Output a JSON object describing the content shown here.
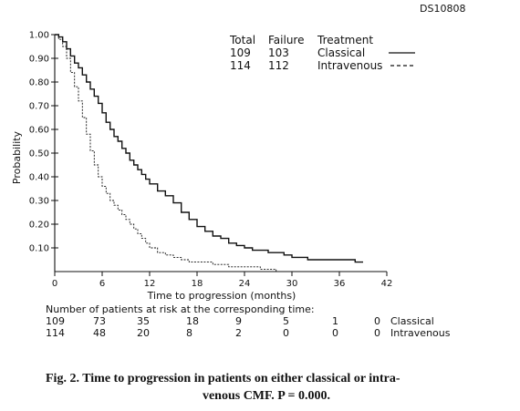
{
  "figure_id": "DS10808",
  "legend_table": {
    "headers": [
      "Total",
      "Failure",
      "Treatment"
    ],
    "rows": [
      {
        "total": "109",
        "failure": "103",
        "treatment": "Classical",
        "line": "solid"
      },
      {
        "total": "114",
        "failure": "112",
        "treatment": "Intravenous",
        "line": "dashed"
      }
    ]
  },
  "risk_table": {
    "title": "Number of patients at risk at the corresponding time:",
    "rows": [
      {
        "values": [
          "109",
          "73",
          "35",
          "18",
          "9",
          "5",
          "1",
          "0"
        ],
        "label": "Classical"
      },
      {
        "values": [
          "114",
          "48",
          "20",
          "8",
          "2",
          "0",
          "0",
          "0"
        ],
        "label": "Intravenous"
      }
    ]
  },
  "caption": {
    "line1": "Fig. 2. Time to progression in patients on either classical or intra-",
    "line2": "venous CMF. P = 0.000."
  },
  "chart_data": {
    "type": "line",
    "title": "",
    "xlabel": "Time to progression (months)",
    "ylabel": "Probability",
    "xlim": [
      0,
      42
    ],
    "ylim": [
      0,
      1.0
    ],
    "x_ticks": [
      0,
      6,
      12,
      18,
      24,
      30,
      36,
      42
    ],
    "x_tick_labels": [
      "0",
      "6",
      "12",
      "18",
      "24",
      "30",
      "36",
      "42"
    ],
    "y_ticks": [
      0.1,
      0.2,
      0.3,
      0.4,
      0.5,
      0.6,
      0.7,
      0.8,
      0.9,
      1.0
    ],
    "y_tick_labels": [
      "0.10",
      "0.20",
      "0.30",
      "0.40",
      "0.50",
      "0.60",
      "0.70",
      "0.80",
      "0.90",
      "1.00"
    ],
    "grid": false,
    "legend": "top-right",
    "series": [
      {
        "name": "Classical",
        "style": "solid",
        "x": [
          0,
          0.5,
          1,
          1.5,
          2,
          2.5,
          3,
          3.5,
          4,
          4.5,
          5,
          5.5,
          6,
          6.5,
          7,
          7.5,
          8,
          8.5,
          9,
          9.5,
          10,
          10.5,
          11,
          11.5,
          12,
          13,
          14,
          15,
          16,
          17,
          18,
          19,
          20,
          21,
          22,
          23,
          24,
          25,
          26,
          27,
          28,
          29,
          30,
          32,
          34,
          36,
          38,
          39
        ],
        "y": [
          1.0,
          0.99,
          0.97,
          0.94,
          0.91,
          0.88,
          0.86,
          0.83,
          0.8,
          0.77,
          0.74,
          0.71,
          0.67,
          0.63,
          0.6,
          0.57,
          0.55,
          0.52,
          0.5,
          0.47,
          0.45,
          0.43,
          0.41,
          0.39,
          0.37,
          0.34,
          0.32,
          0.29,
          0.25,
          0.22,
          0.19,
          0.17,
          0.15,
          0.14,
          0.12,
          0.11,
          0.1,
          0.09,
          0.09,
          0.08,
          0.08,
          0.07,
          0.06,
          0.05,
          0.05,
          0.05,
          0.04,
          0.04
        ]
      },
      {
        "name": "Intravenous",
        "style": "dashed",
        "x": [
          0,
          0.5,
          1,
          1.5,
          2,
          2.5,
          3,
          3.5,
          4,
          4.5,
          5,
          5.5,
          6,
          6.5,
          7,
          7.5,
          8,
          8.5,
          9,
          9.5,
          10,
          10.5,
          11,
          11.5,
          12,
          13,
          14,
          15,
          16,
          17,
          18,
          20,
          22,
          24,
          26,
          28
        ],
        "y": [
          1.0,
          0.98,
          0.95,
          0.9,
          0.84,
          0.78,
          0.72,
          0.65,
          0.58,
          0.51,
          0.45,
          0.4,
          0.36,
          0.33,
          0.3,
          0.28,
          0.26,
          0.24,
          0.22,
          0.2,
          0.18,
          0.16,
          0.14,
          0.12,
          0.1,
          0.08,
          0.07,
          0.06,
          0.05,
          0.04,
          0.04,
          0.03,
          0.02,
          0.02,
          0.01,
          0.0
        ]
      }
    ]
  }
}
